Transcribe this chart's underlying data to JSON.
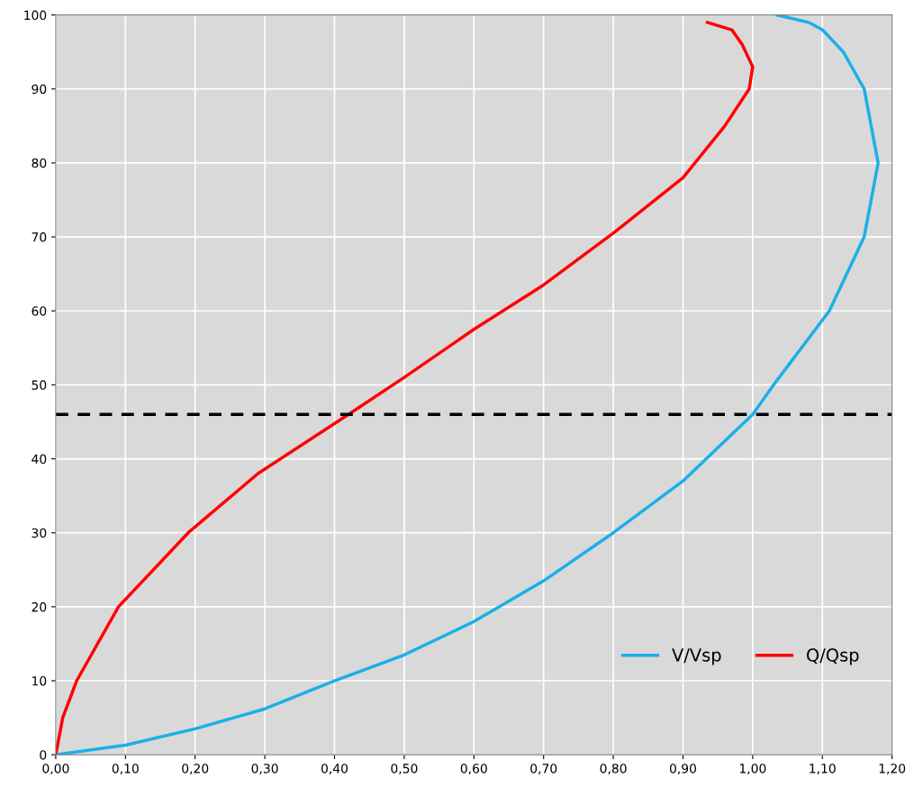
{
  "chart_data": {
    "type": "line",
    "series": [
      {
        "name": "V/Vsp",
        "color": "#1ab0e8",
        "x": [
          0.0,
          0.1,
          0.2,
          0.3,
          0.4,
          0.5,
          0.6,
          0.7,
          0.8,
          0.9,
          1.0,
          1.03,
          1.11,
          1.16,
          1.18,
          1.16,
          1.13,
          1.1,
          1.08,
          1.035
        ],
        "values": [
          0,
          1.3,
          3.5,
          6.2,
          10,
          13.5,
          18,
          23.5,
          30,
          37,
          46,
          50,
          60,
          70,
          80,
          90,
          95,
          98,
          99,
          100
        ]
      },
      {
        "name": "Q/Qsp",
        "color": "#ff0000",
        "x": [
          0.0,
          0.01,
          0.03,
          0.09,
          0.19,
          0.29,
          0.42,
          0.5,
          0.6,
          0.7,
          0.8,
          0.9,
          0.96,
          0.995,
          1.0,
          0.985,
          0.97,
          0.935
        ],
        "values": [
          0,
          5,
          10,
          20,
          30,
          38,
          46,
          51,
          57.5,
          63.5,
          70.5,
          78,
          85,
          90,
          93,
          96,
          98,
          99
        ]
      }
    ],
    "xlim": [
      0,
      1.2
    ],
    "xticks": [
      {
        "value": 0,
        "label": "0,00"
      },
      {
        "value": 0.1,
        "label": "0,10"
      },
      {
        "value": 0.2,
        "label": "0,20"
      },
      {
        "value": 0.3,
        "label": "0,30"
      },
      {
        "value": 0.4,
        "label": "0,40"
      },
      {
        "value": 0.5,
        "label": "0,50"
      },
      {
        "value": 0.6,
        "label": "0,60"
      },
      {
        "value": 0.7,
        "label": "0,70"
      },
      {
        "value": 0.8,
        "label": "0,80"
      },
      {
        "value": 0.9,
        "label": "0,90"
      },
      {
        "value": 1.0,
        "label": "1,00"
      },
      {
        "value": 1.1,
        "label": "1,10"
      },
      {
        "value": 1.2,
        "label": "1,20"
      }
    ],
    "ylim": [
      0,
      100
    ],
    "yticks": [
      0,
      10,
      20,
      30,
      40,
      50,
      60,
      70,
      80,
      90,
      100
    ],
    "ref_lines": [
      {
        "axis": "y",
        "value": 46,
        "color": "#000000",
        "line_style": "dashed"
      }
    ],
    "grid": true,
    "legend": "bottom right",
    "marker": "none",
    "line_style": "solid"
  }
}
